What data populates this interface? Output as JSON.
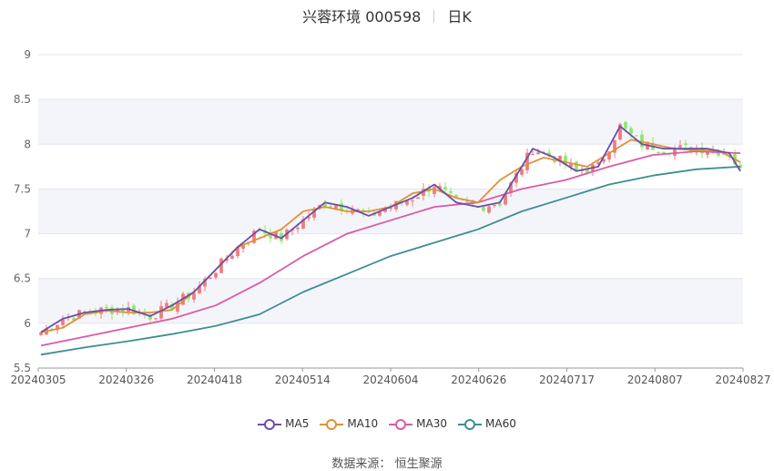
{
  "header": {
    "stock": "兴蓉环境 000598",
    "period": "日K"
  },
  "source": {
    "label": "数据来源：",
    "name": "恒生聚源"
  },
  "chart_data": {
    "type": "candlestick",
    "ylim": [
      5.5,
      9
    ],
    "yticks": [
      5.5,
      6,
      6.5,
      7,
      7.5,
      8,
      8.5,
      9
    ],
    "xlabels": [
      "20240305",
      "20240326",
      "20240418",
      "20240514",
      "20240604",
      "20240626",
      "20240717",
      "20240807",
      "20240827"
    ],
    "colors": {
      "up": "#f07b7b",
      "down": "#8ee86a",
      "ma5": "#6a4fa8",
      "ma10": "#e0913a",
      "ma30": "#dc5aa6",
      "ma60": "#3f8d93"
    },
    "legend": [
      {
        "key": "ma5",
        "label": "MA5"
      },
      {
        "key": "ma10",
        "label": "MA10"
      },
      {
        "key": "ma30",
        "label": "MA30"
      },
      {
        "key": "ma60",
        "label": "MA60"
      }
    ],
    "ma5": [
      [
        0,
        5.9
      ],
      [
        4,
        6.05
      ],
      [
        8,
        6.12
      ],
      [
        12,
        6.15
      ],
      [
        16,
        6.16
      ],
      [
        20,
        6.08
      ],
      [
        24,
        6.2
      ],
      [
        28,
        6.35
      ],
      [
        32,
        6.6
      ],
      [
        36,
        6.85
      ],
      [
        40,
        7.05
      ],
      [
        44,
        6.95
      ],
      [
        48,
        7.15
      ],
      [
        52,
        7.35
      ],
      [
        56,
        7.3
      ],
      [
        60,
        7.2
      ],
      [
        64,
        7.3
      ],
      [
        68,
        7.4
      ],
      [
        72,
        7.55
      ],
      [
        76,
        7.35
      ],
      [
        80,
        7.3
      ],
      [
        84,
        7.35
      ],
      [
        88,
        7.75
      ],
      [
        90,
        7.95
      ],
      [
        94,
        7.85
      ],
      [
        98,
        7.7
      ],
      [
        102,
        7.75
      ],
      [
        106,
        8.2
      ],
      [
        110,
        8.0
      ],
      [
        114,
        7.95
      ],
      [
        118,
        7.95
      ],
      [
        122,
        7.95
      ],
      [
        126,
        7.9
      ],
      [
        128,
        7.7
      ]
    ],
    "ma10": [
      [
        0,
        5.9
      ],
      [
        4,
        5.95
      ],
      [
        8,
        6.1
      ],
      [
        12,
        6.14
      ],
      [
        16,
        6.12
      ],
      [
        20,
        6.12
      ],
      [
        24,
        6.15
      ],
      [
        28,
        6.35
      ],
      [
        32,
        6.6
      ],
      [
        36,
        6.85
      ],
      [
        40,
        6.95
      ],
      [
        44,
        7.05
      ],
      [
        48,
        7.25
      ],
      [
        52,
        7.3
      ],
      [
        56,
        7.25
      ],
      [
        60,
        7.25
      ],
      [
        64,
        7.3
      ],
      [
        68,
        7.45
      ],
      [
        72,
        7.5
      ],
      [
        76,
        7.4
      ],
      [
        80,
        7.35
      ],
      [
        84,
        7.6
      ],
      [
        88,
        7.75
      ],
      [
        92,
        7.85
      ],
      [
        96,
        7.8
      ],
      [
        100,
        7.75
      ],
      [
        104,
        7.9
      ],
      [
        108,
        8.05
      ],
      [
        112,
        8.0
      ],
      [
        116,
        7.95
      ],
      [
        120,
        7.93
      ],
      [
        124,
        7.93
      ],
      [
        128,
        7.8
      ]
    ],
    "ma30": [
      [
        0,
        5.75
      ],
      [
        8,
        5.85
      ],
      [
        16,
        5.95
      ],
      [
        24,
        6.05
      ],
      [
        32,
        6.2
      ],
      [
        40,
        6.45
      ],
      [
        48,
        6.75
      ],
      [
        56,
        7.0
      ],
      [
        64,
        7.15
      ],
      [
        72,
        7.3
      ],
      [
        80,
        7.35
      ],
      [
        88,
        7.5
      ],
      [
        96,
        7.6
      ],
      [
        104,
        7.75
      ],
      [
        112,
        7.88
      ],
      [
        120,
        7.92
      ],
      [
        128,
        7.9
      ]
    ],
    "ma60": [
      [
        0,
        5.65
      ],
      [
        8,
        5.73
      ],
      [
        16,
        5.8
      ],
      [
        24,
        5.88
      ],
      [
        32,
        5.97
      ],
      [
        40,
        6.1
      ],
      [
        48,
        6.35
      ],
      [
        56,
        6.55
      ],
      [
        64,
        6.75
      ],
      [
        72,
        6.9
      ],
      [
        80,
        7.05
      ],
      [
        88,
        7.25
      ],
      [
        96,
        7.4
      ],
      [
        104,
        7.55
      ],
      [
        112,
        7.65
      ],
      [
        120,
        7.72
      ],
      [
        128,
        7.75
      ]
    ]
  }
}
